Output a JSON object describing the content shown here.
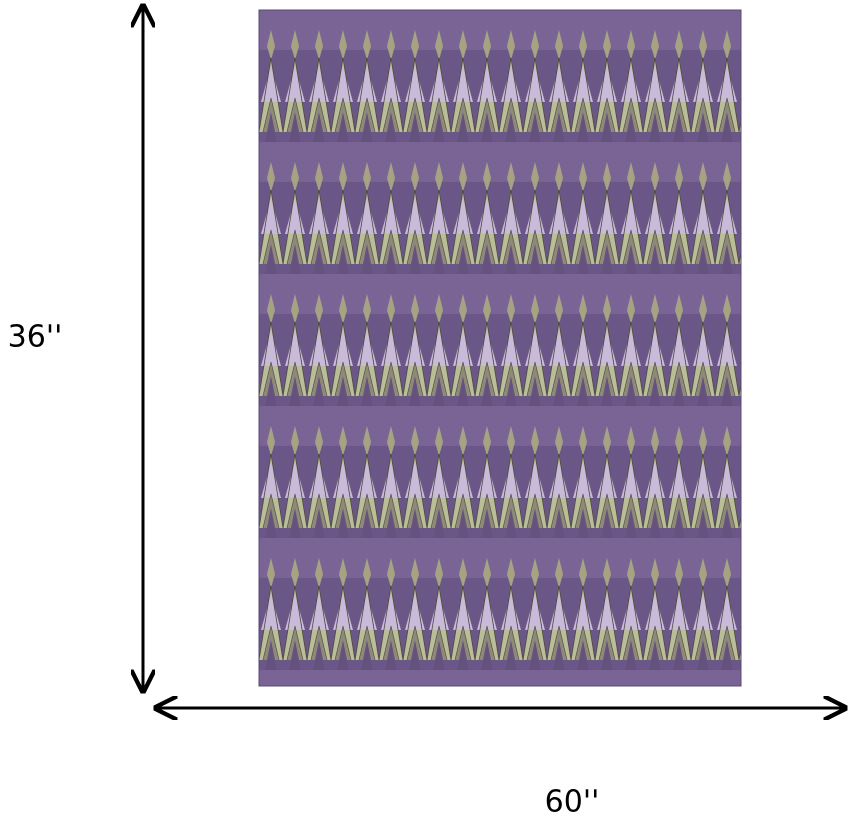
{
  "dimensions": {
    "height": "36''",
    "width": "60''"
  }
}
